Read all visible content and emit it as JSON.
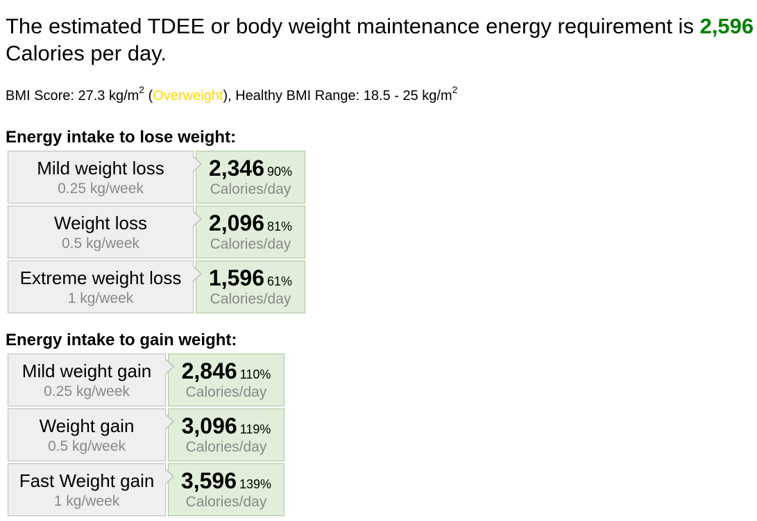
{
  "headline": {
    "prefix": "The estimated TDEE or body weight maintenance energy requirement is",
    "tdee": "2,596",
    "suffix": "Calories per day."
  },
  "bmi": {
    "label": "BMI Score: 27.3 kg/m",
    "sup1": "2",
    "open_paren": " (",
    "category": "Overweight",
    "middle": "), Healthy BMI Range: 18.5 - 25 kg/m",
    "sup2": "2",
    "category_color": "#ffd700"
  },
  "lose": {
    "title": "Energy intake to lose weight:",
    "rows": [
      {
        "name": "Mild weight loss",
        "rate": "0.25 kg/week",
        "calories": "2,346",
        "percent": "90%",
        "unit": "Calories/day"
      },
      {
        "name": "Weight loss",
        "rate": "0.5 kg/week",
        "calories": "2,096",
        "percent": "81%",
        "unit": "Calories/day"
      },
      {
        "name": "Extreme weight loss",
        "rate": "1 kg/week",
        "calories": "1,596",
        "percent": "61%",
        "unit": "Calories/day"
      }
    ]
  },
  "gain": {
    "title": "Energy intake to gain weight:",
    "rows": [
      {
        "name": "Mild weight gain",
        "rate": "0.25 kg/week",
        "calories": "2,846",
        "percent": "110%",
        "unit": "Calories/day"
      },
      {
        "name": "Weight gain",
        "rate": "0.5 kg/week",
        "calories": "3,096",
        "percent": "119%",
        "unit": "Calories/day"
      },
      {
        "name": "Fast Weight gain",
        "rate": "1 kg/week",
        "calories": "3,596",
        "percent": "139%",
        "unit": "Calories/day"
      }
    ]
  },
  "colors": {
    "tdee_green": "#008000",
    "plan_bg": "#efefef",
    "calories_bg": "#e1eed9"
  }
}
